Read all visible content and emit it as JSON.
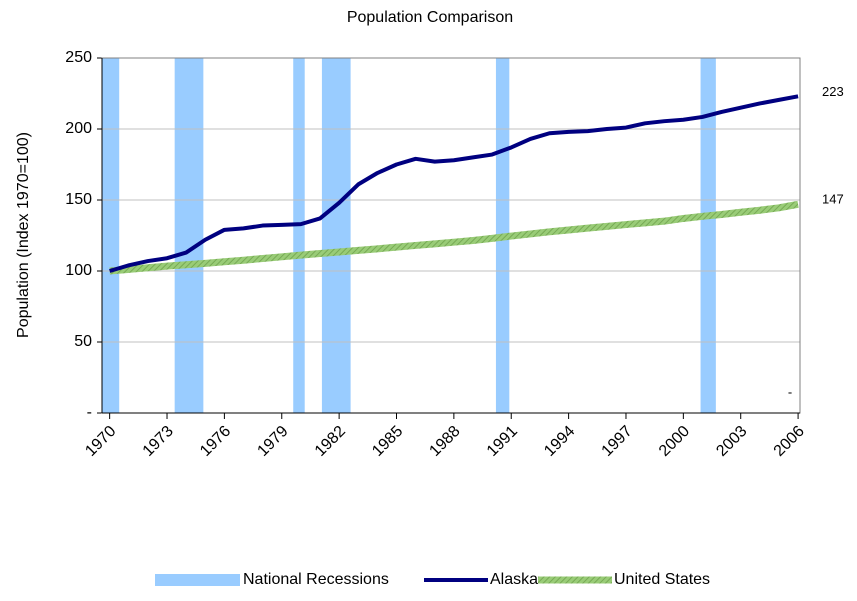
{
  "chart_data": {
    "type": "line",
    "title": "Population Comparison",
    "y_label": "Population (Index 1970=100)",
    "x": [
      1970,
      1971,
      1972,
      1973,
      1974,
      1975,
      1976,
      1977,
      1978,
      1979,
      1980,
      1981,
      1982,
      1983,
      1984,
      1985,
      1986,
      1987,
      1988,
      1989,
      1990,
      1991,
      1992,
      1993,
      1994,
      1995,
      1996,
      1997,
      1998,
      1999,
      2000,
      2001,
      2002,
      2003,
      2004,
      2005,
      2006
    ],
    "xlim": [
      1969.6,
      2006.1
    ],
    "xticks": [
      1970,
      1973,
      1976,
      1979,
      1982,
      1985,
      1988,
      1991,
      1994,
      1997,
      2000,
      2003,
      2006
    ],
    "ylim": [
      0,
      250
    ],
    "yticks": [
      {
        "value": 0,
        "label": "-"
      },
      50,
      100,
      150,
      200,
      250
    ],
    "grid": true,
    "legend": "bottom",
    "recessions": {
      "name": "National Recessions",
      "color": "#99ccff",
      "ranges": [
        [
          1969.6,
          1970.5
        ],
        [
          1973.4,
          1974.9
        ],
        [
          1979.6,
          1980.2
        ],
        [
          1981.1,
          1982.6
        ],
        [
          1990.2,
          1990.9
        ],
        [
          2000.9,
          2001.7
        ]
      ],
      "values": [
        250,
        250,
        250,
        250,
        250,
        250
      ]
    },
    "annotation": "-",
    "series": [
      {
        "name": "Alaska",
        "color": "#000080",
        "values": [
          100,
          104,
          107,
          109,
          113,
          122,
          129,
          130,
          132,
          132.5,
          133,
          137,
          148,
          161,
          169,
          175,
          179,
          177,
          178,
          180,
          182,
          187,
          193,
          197,
          198,
          198.5,
          200,
          201,
          204,
          205.5,
          206.5,
          208.5,
          212,
          215,
          218,
          220.5,
          223
        ]
      },
      {
        "name": "United States",
        "color": "#99cc77",
        "values": [
          100,
          101.1,
          102.3,
          103.4,
          104.4,
          105.4,
          106.5,
          107.6,
          108.8,
          110,
          111.2,
          112.3,
          113.4,
          114.5,
          115.6,
          116.8,
          118,
          119.1,
          120.3,
          121.5,
          123,
          124.6,
          126.1,
          127.6,
          128.9,
          130.2,
          131.4,
          132.7,
          133.9,
          135.1,
          137,
          138.5,
          139.8,
          141.4,
          142.8,
          144.5,
          147
        ]
      }
    ]
  }
}
